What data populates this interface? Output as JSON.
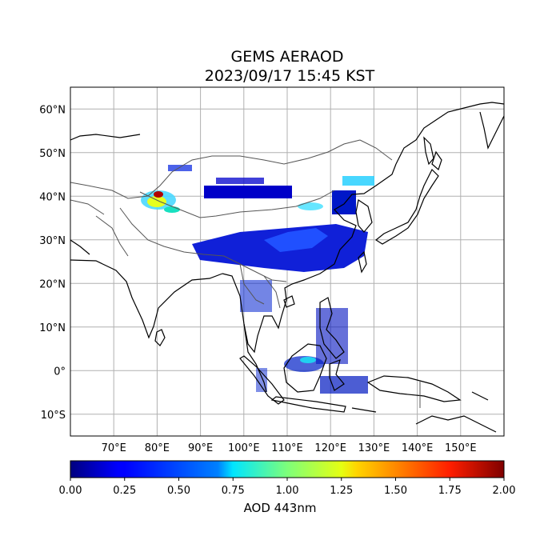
{
  "title": {
    "line1": "GEMS AERAOD",
    "line2": "2023/09/17 15:45 KST"
  },
  "map": {
    "projection": "PlateCarree",
    "lon_range": [
      60,
      160
    ],
    "lat_range": [
      -15,
      65
    ],
    "grid": true,
    "lon_ticks": [
      "70°E",
      "80°E",
      "90°E",
      "100°E",
      "110°E",
      "120°E",
      "130°E",
      "140°E",
      "150°E"
    ],
    "lat_ticks": [
      "60°N",
      "50°N",
      "40°N",
      "30°N",
      "20°N",
      "10°N",
      "0°",
      "10°S"
    ]
  },
  "colorbar": {
    "label": "AOD 443nm",
    "colormap": "jet",
    "range": [
      0,
      2
    ],
    "ticks": [
      "0.00",
      "0.25",
      "0.50",
      "0.75",
      "1.00",
      "1.25",
      "1.50",
      "1.75",
      "2.00"
    ]
  },
  "colors": {
    "coastline": "#000000",
    "borders": "#555555",
    "grid": "#b0b0b0"
  }
}
